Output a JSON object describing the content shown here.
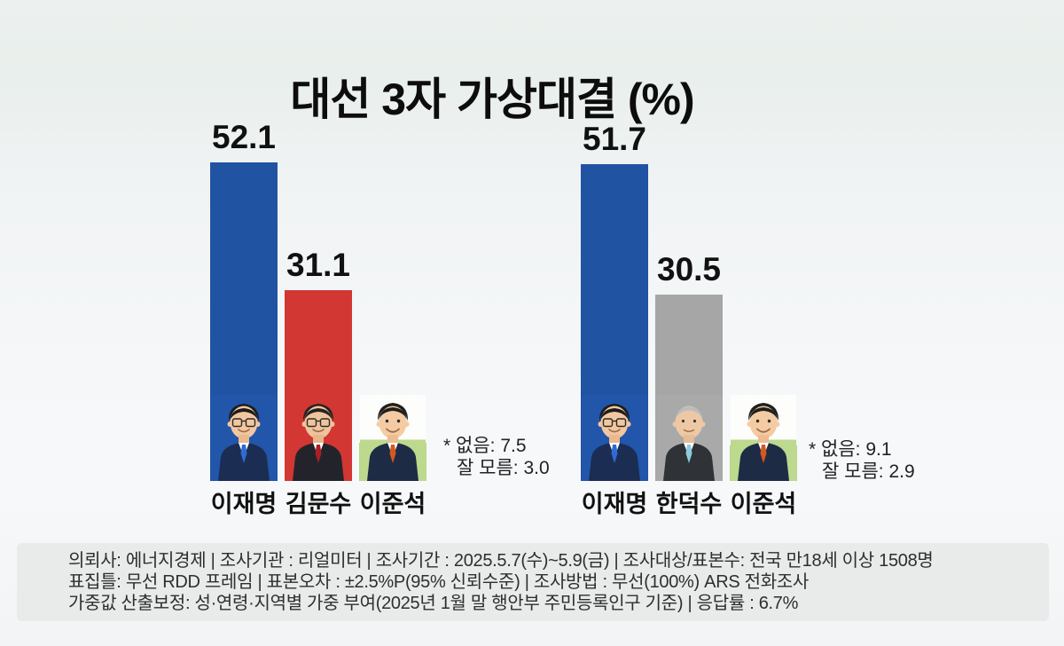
{
  "page": {
    "title": "대선 3자 가상대결 (%)"
  },
  "chart_data": [
    {
      "type": "bar",
      "categories": [
        "이재명",
        "김문수",
        "이준석"
      ],
      "values": [
        52.1,
        31.1,
        6.3
      ],
      "bar_colors": [
        "#2153a3",
        "#d23733",
        "#b7d88b"
      ],
      "note_lines": [
        "* 없음: 7.5",
        "잘 모름: 3.0"
      ],
      "ylabel": "",
      "xlabel": "",
      "ylim": [
        0,
        55
      ],
      "grid": false,
      "legend": "none",
      "value_labels_shown": true
    },
    {
      "type": "bar",
      "categories": [
        "이재명",
        "한덕수",
        "이준석"
      ],
      "values": [
        51.7,
        30.5,
        5.8
      ],
      "bar_colors": [
        "#2153a3",
        "#a6a6a6",
        "#b7d88b"
      ],
      "note_lines": [
        "* 없음: 9.1",
        "잘 모름: 2.9"
      ],
      "ylabel": "",
      "xlabel": "",
      "ylim": [
        0,
        55
      ],
      "grid": false,
      "legend": "none",
      "value_labels_shown": true
    }
  ],
  "photos": {
    "ljm": {
      "bg": "#2156ab"
    },
    "kms": {
      "bg": "#d23733"
    },
    "ljs": {
      "bg_top": "#fdfdfb",
      "bg_bottom": "#bcd98e"
    },
    "hds": {
      "bg": "#a9a9a9"
    }
  },
  "footer": {
    "lines": [
      "의뢰사: 에너지경제 | 조사기관 : 리얼미터 |  조사기간 : 2025.5.7(수)~5.9(금) | 조사대상/표본수: 전국 만18세 이상 1508명",
      "표집틀: 무선 RDD 프레임 | 표본오차 : ±2.5%P(95% 신뢰수준) | 조사방법 : 무선(100%) ARS 전화조사",
      "가중값 산출보정: 성·연령·지역별 가중 부여(2025년 1월 말 행안부 주민등록인구 기준) | 응답률 : 6.7%"
    ]
  }
}
